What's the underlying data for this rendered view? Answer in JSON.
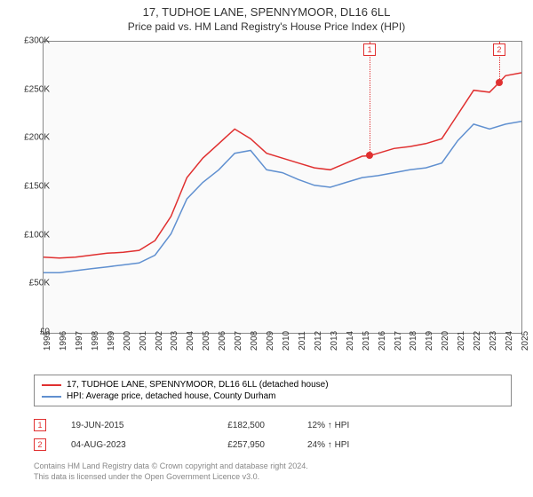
{
  "title": "17, TUDHOE LANE, SPENNYMOOR, DL16 6LL",
  "subtitle": "Price paid vs. HM Land Registry's House Price Index (HPI)",
  "chart": {
    "type": "line",
    "background_color": "#fafafa",
    "border_color": "#888888",
    "ylim": [
      0,
      300
    ],
    "ytick_step": 50,
    "yaxis_prefix": "£",
    "yaxis_suffix": "K",
    "xlim": [
      1995,
      2025
    ],
    "xtick_step": 1,
    "series": [
      {
        "label": "17, TUDHOE LANE, SPENNYMOOR, DL16 6LL (detached house)",
        "color": "#e03030",
        "width": 1.5,
        "points": [
          [
            1995,
            78
          ],
          [
            1996,
            77
          ],
          [
            1997,
            78
          ],
          [
            1998,
            80
          ],
          [
            1999,
            82
          ],
          [
            2000,
            83
          ],
          [
            2001,
            85
          ],
          [
            2002,
            95
          ],
          [
            2003,
            120
          ],
          [
            2004,
            160
          ],
          [
            2005,
            180
          ],
          [
            2006,
            195
          ],
          [
            2007,
            210
          ],
          [
            2008,
            200
          ],
          [
            2009,
            185
          ],
          [
            2010,
            180
          ],
          [
            2011,
            175
          ],
          [
            2012,
            170
          ],
          [
            2013,
            168
          ],
          [
            2014,
            175
          ],
          [
            2015,
            182
          ],
          [
            2015.47,
            182.5
          ],
          [
            2016,
            185
          ],
          [
            2017,
            190
          ],
          [
            2018,
            192
          ],
          [
            2019,
            195
          ],
          [
            2020,
            200
          ],
          [
            2021,
            225
          ],
          [
            2022,
            250
          ],
          [
            2023,
            248
          ],
          [
            2023.6,
            257.95
          ],
          [
            2024,
            265
          ],
          [
            2025,
            268
          ]
        ]
      },
      {
        "label": "HPI: Average price, detached house, County Durham",
        "color": "#6090d0",
        "width": 1.5,
        "points": [
          [
            1995,
            62
          ],
          [
            1996,
            62
          ],
          [
            1997,
            64
          ],
          [
            1998,
            66
          ],
          [
            1999,
            68
          ],
          [
            2000,
            70
          ],
          [
            2001,
            72
          ],
          [
            2002,
            80
          ],
          [
            2003,
            102
          ],
          [
            2004,
            138
          ],
          [
            2005,
            155
          ],
          [
            2006,
            168
          ],
          [
            2007,
            185
          ],
          [
            2008,
            188
          ],
          [
            2009,
            168
          ],
          [
            2010,
            165
          ],
          [
            2011,
            158
          ],
          [
            2012,
            152
          ],
          [
            2013,
            150
          ],
          [
            2014,
            155
          ],
          [
            2015,
            160
          ],
          [
            2016,
            162
          ],
          [
            2017,
            165
          ],
          [
            2018,
            168
          ],
          [
            2019,
            170
          ],
          [
            2020,
            175
          ],
          [
            2021,
            198
          ],
          [
            2022,
            215
          ],
          [
            2023,
            210
          ],
          [
            2024,
            215
          ],
          [
            2025,
            218
          ]
        ]
      }
    ],
    "markers": [
      {
        "n": "1",
        "x": 2015.47,
        "y": 182.5,
        "color": "#e03030"
      },
      {
        "n": "2",
        "x": 2023.6,
        "y": 257.95,
        "color": "#e03030"
      }
    ]
  },
  "legend": {
    "border_color": "#888888",
    "rows": [
      {
        "color": "#e03030",
        "label": "17, TUDHOE LANE, SPENNYMOOR, DL16 6LL (detached house)"
      },
      {
        "color": "#6090d0",
        "label": "HPI: Average price, detached house, County Durham"
      }
    ]
  },
  "sales": [
    {
      "n": "1",
      "color": "#e03030",
      "date": "19-JUN-2015",
      "price": "£182,500",
      "hpi": "12% ↑ HPI"
    },
    {
      "n": "2",
      "color": "#e03030",
      "date": "04-AUG-2023",
      "price": "£257,950",
      "hpi": "24% ↑ HPI"
    }
  ],
  "footer": {
    "line1": "Contains HM Land Registry data © Crown copyright and database right 2024.",
    "line2": "This data is licensed under the Open Government Licence v3.0."
  }
}
